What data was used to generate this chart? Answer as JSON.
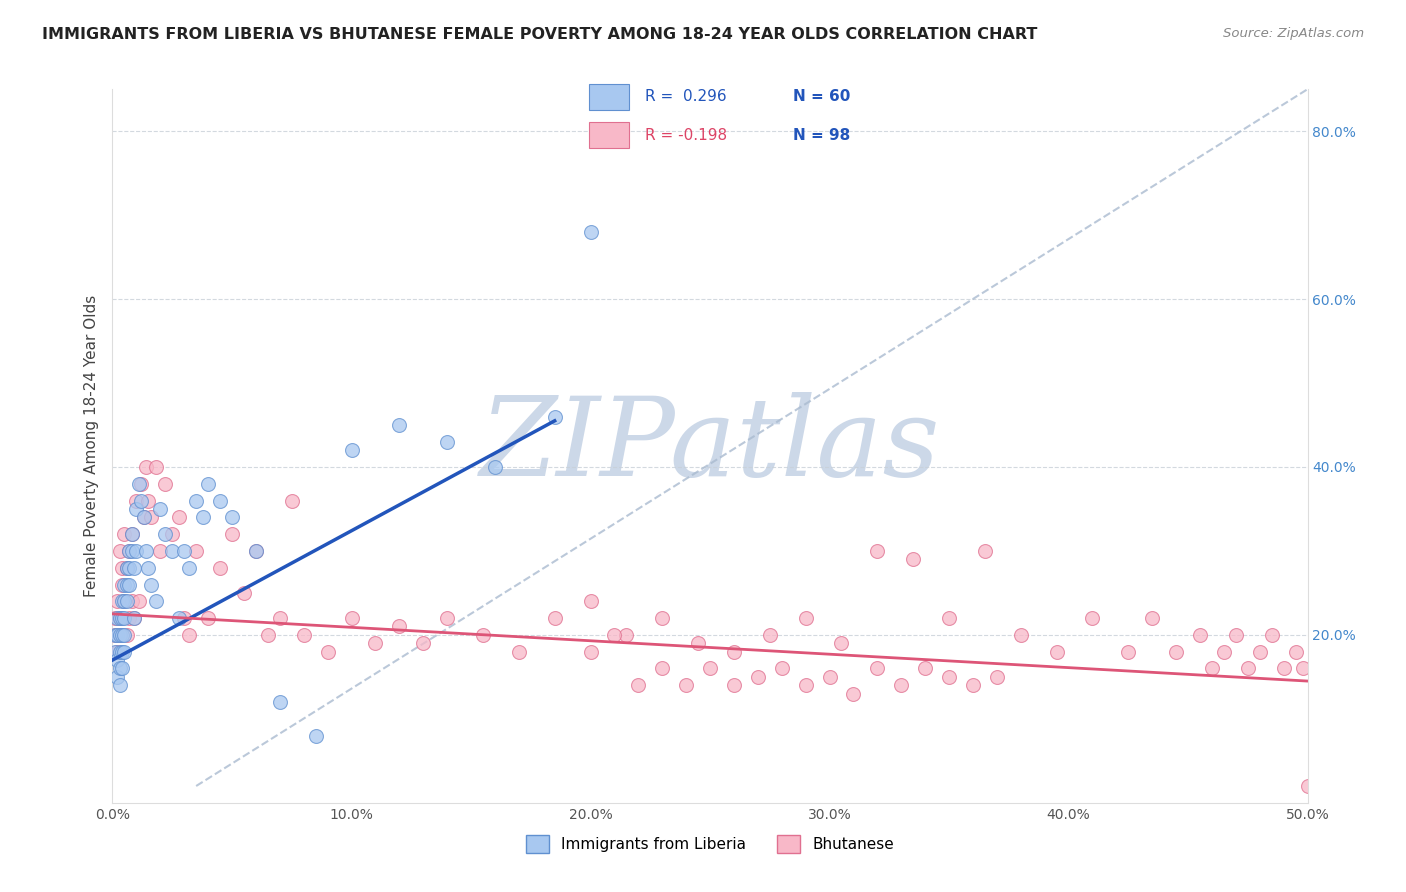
{
  "title": "IMMIGRANTS FROM LIBERIA VS BHUTANESE FEMALE POVERTY AMONG 18-24 YEAR OLDS CORRELATION CHART",
  "source": "Source: ZipAtlas.com",
  "ylabel": "Female Poverty Among 18-24 Year Olds",
  "xlim": [
    0.0,
    0.5
  ],
  "ylim": [
    0.0,
    0.85
  ],
  "liberia_color": "#a8c8f0",
  "bhutanese_color": "#f8b8c8",
  "liberia_edge_color": "#6090d0",
  "bhutanese_edge_color": "#e07090",
  "liberia_line_color": "#2255bb",
  "bhutanese_line_color": "#dd5577",
  "ref_line_color": "#aabbd0",
  "watermark": "ZIPatlas",
  "watermark_color": "#ccd8e8",
  "legend_r1": "R =  0.296",
  "legend_n1": "N = 60",
  "legend_r2": "R = -0.198",
  "legend_n2": "N = 98",
  "lib_line_x0": 0.0,
  "lib_line_y0": 0.17,
  "lib_line_x1": 0.185,
  "lib_line_y1": 0.455,
  "bhu_line_x0": 0.0,
  "bhu_line_y0": 0.225,
  "bhu_line_x1": 0.5,
  "bhu_line_y1": 0.145,
  "ref_line_x0": 0.035,
  "ref_line_y0": 0.02,
  "ref_line_x1": 0.5,
  "ref_line_y1": 0.85,
  "liberia_x": [
    0.001,
    0.001,
    0.002,
    0.002,
    0.002,
    0.002,
    0.003,
    0.003,
    0.003,
    0.003,
    0.003,
    0.004,
    0.004,
    0.004,
    0.004,
    0.004,
    0.005,
    0.005,
    0.005,
    0.005,
    0.005,
    0.006,
    0.006,
    0.006,
    0.007,
    0.007,
    0.007,
    0.008,
    0.008,
    0.009,
    0.009,
    0.01,
    0.01,
    0.011,
    0.012,
    0.013,
    0.014,
    0.015,
    0.016,
    0.018,
    0.02,
    0.022,
    0.025,
    0.028,
    0.03,
    0.032,
    0.035,
    0.038,
    0.04,
    0.045,
    0.05,
    0.06,
    0.07,
    0.085,
    0.1,
    0.12,
    0.14,
    0.16,
    0.185,
    0.2
  ],
  "liberia_y": [
    0.2,
    0.18,
    0.22,
    0.2,
    0.17,
    0.15,
    0.22,
    0.2,
    0.18,
    0.16,
    0.14,
    0.24,
    0.22,
    0.2,
    0.18,
    0.16,
    0.26,
    0.24,
    0.22,
    0.2,
    0.18,
    0.28,
    0.26,
    0.24,
    0.3,
    0.28,
    0.26,
    0.32,
    0.3,
    0.28,
    0.22,
    0.35,
    0.3,
    0.38,
    0.36,
    0.34,
    0.3,
    0.28,
    0.26,
    0.24,
    0.35,
    0.32,
    0.3,
    0.22,
    0.3,
    0.28,
    0.36,
    0.34,
    0.38,
    0.36,
    0.34,
    0.3,
    0.12,
    0.08,
    0.42,
    0.45,
    0.43,
    0.4,
    0.46,
    0.68
  ],
  "bhutanese_x": [
    0.001,
    0.001,
    0.002,
    0.002,
    0.003,
    0.003,
    0.003,
    0.004,
    0.004,
    0.005,
    0.005,
    0.006,
    0.006,
    0.007,
    0.007,
    0.008,
    0.008,
    0.009,
    0.01,
    0.011,
    0.012,
    0.013,
    0.014,
    0.015,
    0.016,
    0.018,
    0.02,
    0.022,
    0.025,
    0.028,
    0.03,
    0.032,
    0.035,
    0.04,
    0.045,
    0.05,
    0.055,
    0.06,
    0.065,
    0.07,
    0.075,
    0.08,
    0.09,
    0.1,
    0.11,
    0.12,
    0.13,
    0.14,
    0.155,
    0.17,
    0.185,
    0.2,
    0.215,
    0.23,
    0.245,
    0.26,
    0.275,
    0.29,
    0.305,
    0.32,
    0.335,
    0.35,
    0.365,
    0.38,
    0.395,
    0.41,
    0.425,
    0.435,
    0.445,
    0.455,
    0.46,
    0.465,
    0.47,
    0.475,
    0.48,
    0.485,
    0.49,
    0.495,
    0.498,
    0.2,
    0.21,
    0.22,
    0.23,
    0.24,
    0.25,
    0.26,
    0.27,
    0.28,
    0.29,
    0.3,
    0.31,
    0.32,
    0.33,
    0.34,
    0.35,
    0.36,
    0.37,
    0.5
  ],
  "bhutanese_y": [
    0.2,
    0.22,
    0.18,
    0.24,
    0.22,
    0.3,
    0.2,
    0.28,
    0.26,
    0.24,
    0.32,
    0.2,
    0.28,
    0.22,
    0.3,
    0.24,
    0.32,
    0.22,
    0.36,
    0.24,
    0.38,
    0.34,
    0.4,
    0.36,
    0.34,
    0.4,
    0.3,
    0.38,
    0.32,
    0.34,
    0.22,
    0.2,
    0.3,
    0.22,
    0.28,
    0.32,
    0.25,
    0.3,
    0.2,
    0.22,
    0.36,
    0.2,
    0.18,
    0.22,
    0.19,
    0.21,
    0.19,
    0.22,
    0.2,
    0.18,
    0.22,
    0.24,
    0.2,
    0.22,
    0.19,
    0.18,
    0.2,
    0.22,
    0.19,
    0.3,
    0.29,
    0.22,
    0.3,
    0.2,
    0.18,
    0.22,
    0.18,
    0.22,
    0.18,
    0.2,
    0.16,
    0.18,
    0.2,
    0.16,
    0.18,
    0.2,
    0.16,
    0.18,
    0.16,
    0.18,
    0.2,
    0.14,
    0.16,
    0.14,
    0.16,
    0.14,
    0.15,
    0.16,
    0.14,
    0.15,
    0.13,
    0.16,
    0.14,
    0.16,
    0.15,
    0.14,
    0.15,
    0.02
  ]
}
